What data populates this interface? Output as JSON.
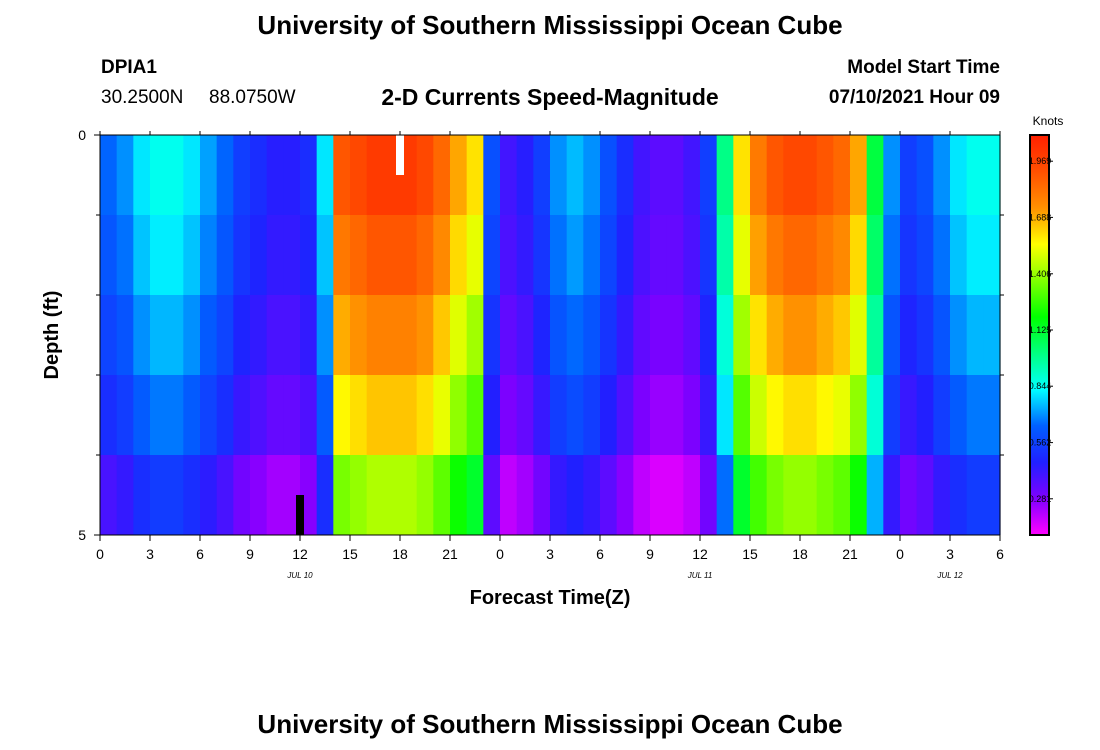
{
  "page_title": "University of Southern Mississippi Ocean Cube",
  "footer_title": "University of Southern Mississippi Ocean Cube",
  "station": {
    "id": "DPIA1",
    "lat": "30.2500N",
    "lon": "88.0750W"
  },
  "model_start": {
    "label": "Model Start Time",
    "value": "07/10/2021 Hour 09"
  },
  "chart_data": {
    "type": "heatmap",
    "title": "2-D Currents Speed-Magnitude",
    "xlabel": "Forecast Time(Z)",
    "ylabel": "Depth (ft)",
    "x_start_hour": 0,
    "x_end_hour": 54,
    "y_range": [
      0,
      5
    ],
    "x_ticks": [
      {
        "hour": 0,
        "label": "0"
      },
      {
        "hour": 3,
        "label": "3"
      },
      {
        "hour": 6,
        "label": "6"
      },
      {
        "hour": 9,
        "label": "9"
      },
      {
        "hour": 12,
        "label": "12"
      },
      {
        "hour": 15,
        "label": "15"
      },
      {
        "hour": 18,
        "label": "18"
      },
      {
        "hour": 21,
        "label": "21"
      },
      {
        "hour": 24,
        "label": "0"
      },
      {
        "hour": 27,
        "label": "3"
      },
      {
        "hour": 30,
        "label": "6"
      },
      {
        "hour": 33,
        "label": "9"
      },
      {
        "hour": 36,
        "label": "12"
      },
      {
        "hour": 39,
        "label": "15"
      },
      {
        "hour": 42,
        "label": "18"
      },
      {
        "hour": 45,
        "label": "21"
      },
      {
        "hour": 48,
        "label": "0"
      },
      {
        "hour": 51,
        "label": "3"
      },
      {
        "hour": 54,
        "label": "6"
      }
    ],
    "date_labels": [
      {
        "hour": 12,
        "label": "JUL 10"
      },
      {
        "hour": 36,
        "label": "JUL 11"
      },
      {
        "hour": 51,
        "label": "JUL 12"
      }
    ],
    "y_tick_labels": [
      {
        "depth": 0,
        "label": "0"
      },
      {
        "depth": 5,
        "label": "5"
      }
    ],
    "y_minor_ticks": [
      1,
      2,
      3,
      4
    ],
    "depth_levels": [
      0,
      1,
      2,
      3,
      4,
      5
    ],
    "surface_profile": [
      0.65,
      0.7,
      0.8,
      0.85,
      0.85,
      0.8,
      0.72,
      0.65,
      0.55,
      0.5,
      0.45,
      0.45,
      0.5,
      0.8,
      1.9,
      1.95,
      2.0,
      2.0,
      2.0,
      1.95,
      1.85,
      1.7,
      1.6,
      0.6,
      0.4,
      0.45,
      0.55,
      0.7,
      0.75,
      0.7,
      0.6,
      0.5,
      0.4,
      0.35,
      0.35,
      0.4,
      0.55,
      1.0,
      1.6,
      1.8,
      1.9,
      1.95,
      1.95,
      1.9,
      1.85,
      1.7,
      1.1,
      0.7,
      0.55,
      0.6,
      0.7,
      0.8,
      0.85,
      0.85
    ],
    "depth_factors": [
      1.0,
      0.95,
      0.9,
      0.85,
      0.78
    ],
    "depth_offsets": [
      0,
      0,
      -0.02,
      -0.05,
      -0.12
    ],
    "colorbar": {
      "title": "Knots",
      "min": 0.1,
      "max": 2.1,
      "tick_values": [
        0.281,
        0.562,
        0.844,
        1.125,
        1.406,
        1.688,
        1.969
      ],
      "tick_labels": [
        "0.281",
        "0.562",
        "0.844",
        "1.125",
        "1.406",
        "1.688",
        "1.969"
      ],
      "colors": [
        "#ff00ff",
        "#8000ff",
        "#2020ff",
        "#0060ff",
        "#00ffff",
        "#00ff80",
        "#00ff00",
        "#80ff00",
        "#ffff00",
        "#ff9000",
        "#ff5000",
        "#ff2000"
      ]
    },
    "markers": [
      {
        "hour": 18,
        "depth_from": 0,
        "depth_to": 0.5,
        "color": "#ffffff"
      },
      {
        "hour": 12,
        "depth_from": 4.5,
        "depth_to": 5,
        "color": "#000000"
      }
    ]
  }
}
